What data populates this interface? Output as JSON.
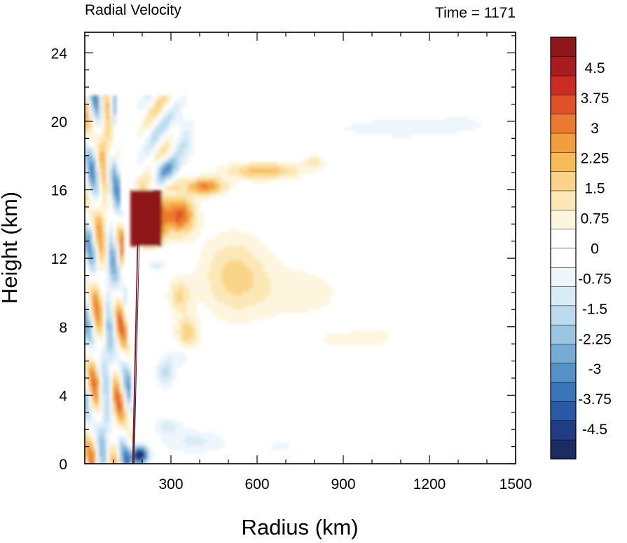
{
  "chart_data": {
    "type": "heatmap",
    "title_left": "Radial Velocity",
    "title_right": "Time = 1171",
    "xlabel": "Radius (km)",
    "ylabel": "Height (km)",
    "xlim": [
      0,
      1500
    ],
    "ylim": [
      0,
      25.2
    ],
    "xticks": [
      300,
      600,
      900,
      1200,
      1500
    ],
    "xtick_labels": [
      "300",
      "600",
      "900",
      "1200",
      "1500"
    ],
    "yticks": [
      0,
      4,
      8,
      12,
      16,
      20,
      24
    ],
    "ytick_labels": [
      "0",
      "4",
      "8",
      "12",
      "16",
      "20",
      "24"
    ],
    "colorbar": {
      "levels_min": -5.25,
      "levels_max": 5.25,
      "level_step": 0.25,
      "tick_values": [
        4.5,
        3.75,
        3,
        2.25,
        1.5,
        0.75,
        0,
        -0.75,
        -1.5,
        -2.25,
        -3,
        -3.75,
        -4.5
      ],
      "tick_labels": [
        "4.5",
        "3.75",
        "3",
        "2.25",
        "1.5",
        "0.75",
        "0",
        "-0.75",
        "-1.5",
        "-2.25",
        "-3",
        "-3.75",
        "-4.5"
      ],
      "colors_bottom_to_top": [
        "#1b2c62",
        "#203c84",
        "#2a59a8",
        "#3a75b8",
        "#5491c6",
        "#75abd4",
        "#9ac6e2",
        "#bcdcee",
        "#d9ecf6",
        "#eef6fb",
        "#ffffff",
        "#ffffff",
        "#fdf5de",
        "#fbe8b6",
        "#fad589",
        "#f7bb5a",
        "#f29d3e",
        "#ea7a2f",
        "#df5226",
        "#cc2b24",
        "#a81c20",
        "#8e1518"
      ]
    },
    "features": [
      {
        "r": 230,
        "z": 14.3,
        "sr": 45,
        "sz": 1.6,
        "v": 5.5
      },
      {
        "r": 330,
        "z": 14.5,
        "sr": 55,
        "sz": 1.1,
        "v": 3.5
      },
      {
        "r": 420,
        "z": 16.2,
        "sr": 70,
        "sz": 0.5,
        "v": 3.0
      },
      {
        "r": 620,
        "z": 17.1,
        "sr": 130,
        "sz": 0.5,
        "v": 2.2
      },
      {
        "r": 800,
        "z": 17.6,
        "sr": 35,
        "sz": 0.35,
        "v": 1.3
      },
      {
        "r": 520,
        "z": 11.0,
        "sr": 120,
        "sz": 2.4,
        "v": 1.6
      },
      {
        "r": 750,
        "z": 10.0,
        "sr": 180,
        "sz": 1.8,
        "v": 0.7
      },
      {
        "r": 900,
        "z": 7.2,
        "sr": 180,
        "sz": 0.8,
        "v": 0.5
      },
      {
        "r": 1010,
        "z": 7.5,
        "sr": 70,
        "sz": 0.6,
        "v": 0.4
      },
      {
        "r": 330,
        "z": 9.8,
        "sr": 40,
        "sz": 1.0,
        "v": 1.5
      },
      {
        "r": 355,
        "z": 7.6,
        "sr": 40,
        "sz": 1.0,
        "v": 1.8
      },
      {
        "r": 190,
        "z": 0.5,
        "sr": 30,
        "sz": 0.5,
        "v": -5.5
      },
      {
        "r": 380,
        "z": 1.3,
        "sr": 110,
        "sz": 0.7,
        "v": -1.1
      },
      {
        "r": 680,
        "z": 1.0,
        "sr": 150,
        "sz": 0.8,
        "v": -0.5
      },
      {
        "r": 290,
        "z": 2.2,
        "sr": 45,
        "sz": 0.5,
        "v": -1.2
      },
      {
        "r": 280,
        "z": 5.3,
        "sr": 30,
        "sz": 0.9,
        "v": -1.6
      },
      {
        "r": 330,
        "z": 6.3,
        "sr": 40,
        "sz": 0.7,
        "v": -1.0
      },
      {
        "r": 780,
        "z": 19.6,
        "sr": 400,
        "sz": 0.9,
        "v": -0.35
      },
      {
        "r": 1150,
        "z": 19.6,
        "sr": 240,
        "sz": 0.9,
        "v": -0.45
      },
      {
        "r": 1320,
        "z": 19.9,
        "sr": 90,
        "sz": 0.5,
        "v": -0.4
      },
      {
        "r": 600,
        "z": 20.1,
        "sr": 60,
        "sz": 0.4,
        "v": 0.5
      },
      {
        "r": 340,
        "z": 19.0,
        "sr": 40,
        "sz": 1.6,
        "v": -1.2
      },
      {
        "r": 270,
        "z": 17.3,
        "sr": 50,
        "sz": 0.6,
        "v": -2.2
      },
      {
        "r": 240,
        "z": 12.4,
        "sr": 50,
        "sz": 0.4,
        "v": -1.0
      },
      {
        "r": 250,
        "z": 11.6,
        "sr": 30,
        "sz": 0.4,
        "v": -1.5
      },
      {
        "r": 1410,
        "z": 16.4,
        "sr": 20,
        "sz": 0.3,
        "v": 0.4
      },
      {
        "r": 1180,
        "z": 17.5,
        "sr": 20,
        "sz": 0.3,
        "v": 0.3
      }
    ]
  }
}
